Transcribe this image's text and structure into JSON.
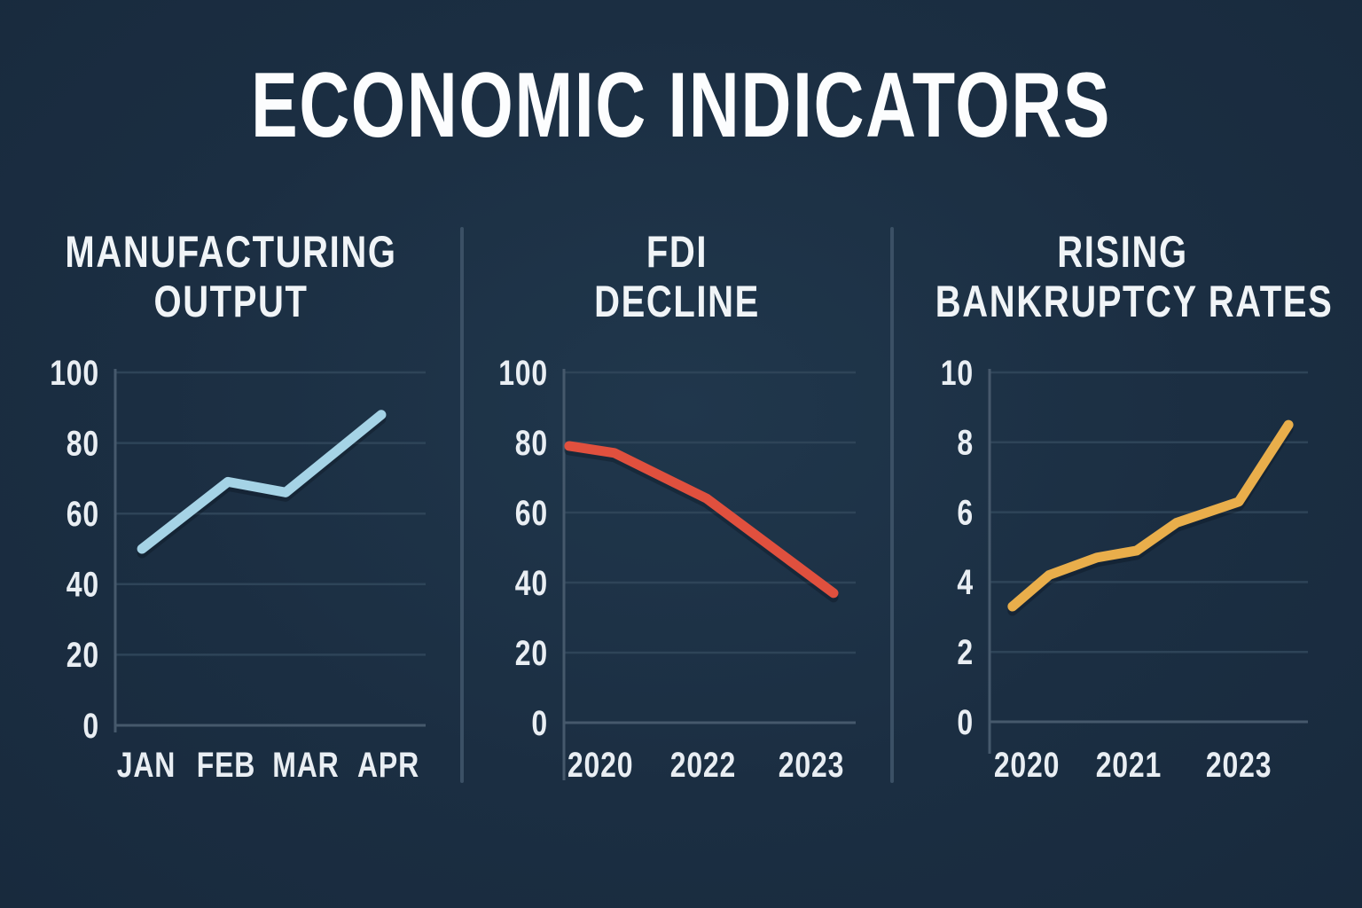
{
  "header": {
    "title": "ECONOMIC INDICATORS"
  },
  "colors": {
    "background": "#1b2e42",
    "text": "#e9eef3",
    "axis": "#46596c",
    "gridline": "#2e4458",
    "divider": "#3b5065",
    "blue_line": "#a5d3e6",
    "red_line": "#e0503e",
    "yellow_line": "#e9ae4b"
  },
  "chart_data": [
    {
      "type": "line",
      "title": "MANUFACTURING OUTPUT",
      "title_lines": [
        "MANUFACTURING",
        "OUTPUT"
      ],
      "categories": [
        "JAN",
        "FEB",
        "MAR",
        "APR"
      ],
      "x_tick_labels": [
        "JAN",
        "FEB",
        "MAR",
        "APR"
      ],
      "values": [
        50,
        69,
        66,
        88
      ],
      "ylim": [
        0,
        100
      ],
      "yticks": [
        0,
        20,
        40,
        60,
        80,
        100
      ],
      "grid": true,
      "legend": "none",
      "line_color": "#a5d3e6"
    },
    {
      "type": "line",
      "title": "FDI DECLINE",
      "title_lines": [
        "FDI",
        "DECLINE"
      ],
      "x_tick_labels": [
        "2020",
        "2022",
        "2023"
      ],
      "values": [
        79,
        77,
        64,
        37
      ],
      "ylim": [
        0,
        100
      ],
      "yticks": [
        0,
        20,
        40,
        60,
        80,
        100
      ],
      "grid": true,
      "legend": "none",
      "line_color": "#e0503e"
    },
    {
      "type": "line",
      "title": "RISING BANKRUPTCY RATES",
      "title_lines": [
        "RISING",
        "BANKRUPTCY RATES"
      ],
      "x_tick_labels": [
        "2020",
        "2021",
        "2023"
      ],
      "values": [
        3.3,
        4.2,
        4.7,
        4.9,
        5.7,
        6.3,
        8.5
      ],
      "ylim": [
        0,
        10
      ],
      "yticks": [
        0,
        2,
        4,
        6,
        8,
        10
      ],
      "grid": true,
      "legend": "none",
      "line_color": "#e9ae4b"
    }
  ]
}
